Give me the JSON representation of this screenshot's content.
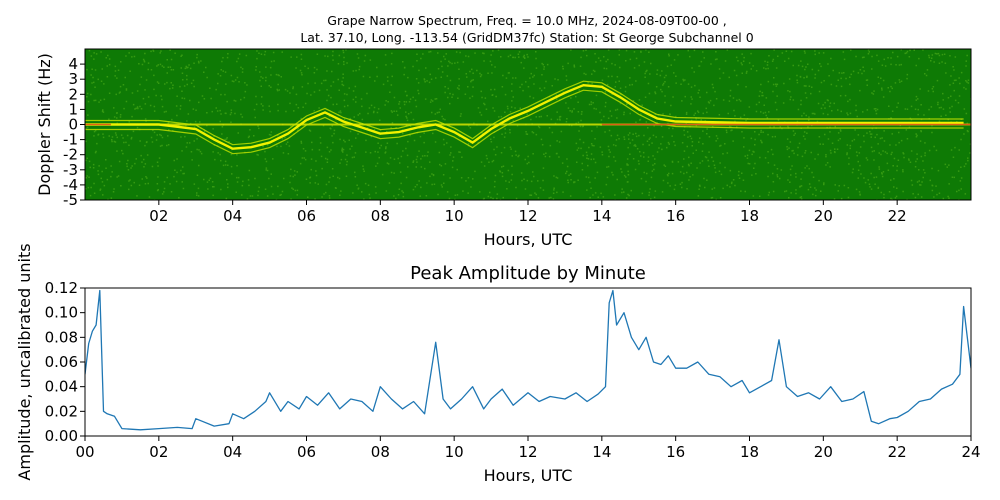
{
  "figure": {
    "title_line1": "Grape Narrow Spectrum, Freq. = 10.0 MHz, 2024-08-09T00-00 ,",
    "title_line2": "Lat.  37.10, Long. -113.54 (GridDM37fc) Station: St George Subchannel 0"
  },
  "chart_data": [
    {
      "type": "heatmap",
      "title": "",
      "xlabel": "Hours, UTC",
      "ylabel": "Doppler Shift (Hz)",
      "xlim": [
        0,
        24
      ],
      "ylim": [
        -5,
        5
      ],
      "x_ticks": [
        2,
        4,
        6,
        8,
        10,
        12,
        14,
        16,
        18,
        20,
        22
      ],
      "x_tick_labels": [
        "02",
        "04",
        "06",
        "08",
        "10",
        "12",
        "14",
        "16",
        "18",
        "20",
        "22"
      ],
      "y_ticks": [
        -5,
        -4,
        -3,
        -2,
        -1,
        0,
        1,
        2,
        3,
        4
      ],
      "y_tick_labels": [
        "-5",
        "-4",
        "-3",
        "-2",
        "-1",
        "0",
        "1",
        "2",
        "3",
        "4"
      ],
      "colors": {
        "background": "#0e7a05",
        "signal": "#f2f200",
        "peak": "#e24a1a"
      },
      "doppler_trace": {
        "hours": [
          0,
          1,
          2,
          3,
          3.5,
          4,
          4.5,
          5,
          5.5,
          6,
          6.5,
          7,
          7.5,
          8,
          8.5,
          9,
          9.5,
          10,
          10.5,
          11,
          11.5,
          12,
          12.5,
          13,
          13.5,
          14,
          14.5,
          15,
          15.5,
          16,
          18,
          20,
          22,
          23.8
        ],
        "hz": [
          0,
          0,
          0,
          -0.3,
          -1.0,
          -1.6,
          -1.5,
          -1.2,
          -0.6,
          0.3,
          0.8,
          0.2,
          -0.2,
          -0.6,
          -0.5,
          -0.2,
          0.0,
          -0.5,
          -1.2,
          -0.3,
          0.4,
          0.9,
          1.5,
          2.1,
          2.6,
          2.5,
          1.8,
          1.0,
          0.4,
          0.2,
          0.1,
          0.1,
          0.1,
          0.1
        ]
      }
    },
    {
      "type": "line",
      "title": "Peak Amplitude by Minute",
      "xlabel": "Hours, UTC",
      "ylabel": "Amplitude, uncalibrated units",
      "xlim": [
        0,
        24
      ],
      "ylim": [
        0,
        0.12
      ],
      "x_ticks": [
        0,
        2,
        4,
        6,
        8,
        10,
        12,
        14,
        16,
        18,
        20,
        22,
        24
      ],
      "x_tick_labels": [
        "00",
        "02",
        "04",
        "06",
        "08",
        "10",
        "12",
        "14",
        "16",
        "18",
        "20",
        "22",
        "24"
      ],
      "y_ticks": [
        0,
        0.02,
        0.04,
        0.06,
        0.08,
        0.1,
        0.12
      ],
      "y_tick_labels": [
        "0.00",
        "0.02",
        "0.04",
        "0.06",
        "0.08",
        "0.10",
        "0.12"
      ],
      "line_color": "#1f77b4",
      "series": [
        {
          "hours": [
            0,
            0.1,
            0.2,
            0.3,
            0.4,
            0.5,
            0.6,
            0.8,
            1.0,
            1.5,
            2.0,
            2.5,
            2.9,
            3.0,
            3.5,
            3.9,
            4.0,
            4.3,
            4.6,
            4.9,
            5.0,
            5.3,
            5.5,
            5.8,
            6.0,
            6.3,
            6.6,
            6.9,
            7.2,
            7.5,
            7.8,
            8.0,
            8.3,
            8.6,
            8.9,
            9.2,
            9.5,
            9.7,
            9.9,
            10.2,
            10.5,
            10.8,
            11.0,
            11.3,
            11.6,
            12.0,
            12.3,
            12.6,
            13.0,
            13.3,
            13.6,
            13.9,
            14.1,
            14.2,
            14.3,
            14.4,
            14.6,
            14.8,
            15.0,
            15.2,
            15.4,
            15.6,
            15.8,
            16.0,
            16.3,
            16.6,
            16.9,
            17.2,
            17.5,
            17.8,
            18.0,
            18.3,
            18.6,
            18.8,
            19.0,
            19.3,
            19.6,
            19.9,
            20.2,
            20.5,
            20.8,
            21.1,
            21.3,
            21.5,
            21.8,
            22.0,
            22.3,
            22.6,
            22.9,
            23.2,
            23.5,
            23.7,
            23.8,
            24.0
          ],
          "values": [
            0.05,
            0.075,
            0.085,
            0.09,
            0.118,
            0.02,
            0.018,
            0.016,
            0.006,
            0.005,
            0.006,
            0.007,
            0.006,
            0.014,
            0.008,
            0.01,
            0.018,
            0.014,
            0.02,
            0.028,
            0.035,
            0.02,
            0.028,
            0.022,
            0.032,
            0.025,
            0.035,
            0.022,
            0.03,
            0.028,
            0.02,
            0.04,
            0.03,
            0.022,
            0.028,
            0.018,
            0.076,
            0.03,
            0.022,
            0.03,
            0.04,
            0.022,
            0.03,
            0.038,
            0.025,
            0.035,
            0.028,
            0.032,
            0.03,
            0.035,
            0.028,
            0.034,
            0.04,
            0.108,
            0.118,
            0.09,
            0.1,
            0.08,
            0.07,
            0.08,
            0.06,
            0.058,
            0.065,
            0.055,
            0.055,
            0.06,
            0.05,
            0.048,
            0.04,
            0.045,
            0.035,
            0.04,
            0.045,
            0.078,
            0.04,
            0.032,
            0.035,
            0.03,
            0.04,
            0.028,
            0.03,
            0.036,
            0.012,
            0.01,
            0.014,
            0.015,
            0.02,
            0.028,
            0.03,
            0.038,
            0.042,
            0.05,
            0.105,
            0.055
          ]
        }
      ]
    }
  ]
}
